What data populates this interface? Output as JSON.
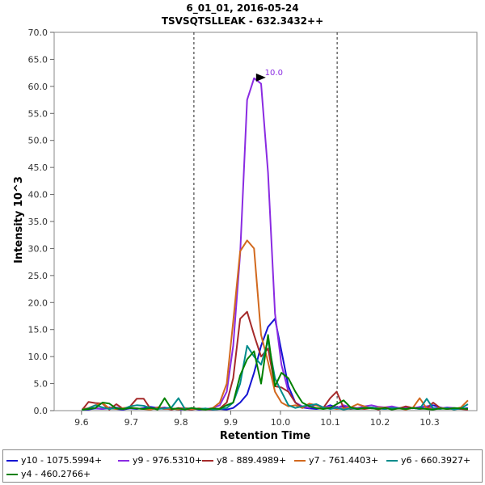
{
  "chart_data": {
    "type": "line",
    "title": "6_01_01, 2016-05-24",
    "subtitle": "TSVSQTSLLEAK - 632.3432++",
    "xlabel": "Retention Time",
    "ylabel": "Intensity 10^3",
    "xlim": [
      9.545,
      10.395
    ],
    "ylim": [
      0,
      70
    ],
    "x_ticks": [
      9.6,
      9.7,
      9.8,
      9.9,
      10.0,
      10.1,
      10.2,
      10.3
    ],
    "x_tick_labels": [
      "9.6",
      "9.7",
      "9.8",
      "9.9",
      "10.0",
      "10.1",
      "10.2",
      "10.3"
    ],
    "y_ticks": [
      0,
      5,
      10,
      15,
      20,
      25,
      30,
      35,
      40,
      45,
      50,
      55,
      60,
      65,
      70
    ],
    "y_tick_labels": [
      "0.0",
      "5.0",
      "10.0",
      "15.0",
      "20.0",
      "25.0",
      "30.0",
      "35.0",
      "40.0",
      "45.0",
      "50.0",
      "55.0",
      "60.0",
      "65.0",
      "70.0"
    ],
    "integration_bounds": [
      9.826,
      10.114
    ],
    "peak_annotation": {
      "label": "10.0",
      "x": 9.99,
      "y": 61.5
    },
    "x": [
      9.601,
      9.614,
      9.628,
      9.642,
      9.656,
      9.67,
      9.684,
      9.698,
      9.711,
      9.725,
      9.739,
      9.753,
      9.767,
      9.781,
      9.795,
      9.808,
      9.822,
      9.836,
      9.85,
      9.864,
      9.878,
      9.892,
      9.905,
      9.919,
      9.933,
      9.947,
      9.961,
      9.975,
      9.989,
      10.002,
      10.016,
      10.03,
      10.044,
      10.058,
      10.072,
      10.086,
      10.1,
      10.113,
      10.127,
      10.141,
      10.155,
      10.169,
      10.183,
      10.197,
      10.21,
      10.224,
      10.238,
      10.252,
      10.266,
      10.28,
      10.294,
      10.307,
      10.321,
      10.335,
      10.349,
      10.363,
      10.377
    ],
    "series": [
      {
        "name": "y10 - 1075.5994+",
        "color": "#1414d2",
        "values": [
          0.2,
          0.2,
          0.4,
          0.3,
          0.6,
          0.3,
          0.2,
          0.4,
          0.3,
          0.5,
          0.7,
          0.5,
          0.3,
          0.4,
          0.2,
          0.3,
          0.4,
          0.2,
          0.3,
          0.2,
          0.3,
          0.2,
          0.5,
          1.5,
          3.0,
          7.0,
          12.0,
          15.5,
          17.0,
          11.0,
          4.5,
          1.5,
          0.6,
          0.4,
          0.3,
          0.5,
          1.0,
          0.6,
          0.8,
          0.5,
          0.3,
          0.4,
          0.6,
          0.4,
          0.3,
          0.5,
          0.4,
          0.3,
          0.5,
          0.6,
          0.8,
          1.0,
          0.6,
          0.3,
          0.4,
          0.3,
          0.5
        ]
      },
      {
        "name": "y9 - 976.5310+",
        "color": "#8a2be2",
        "values": [
          0.3,
          0.4,
          0.5,
          0.3,
          0.4,
          0.6,
          0.3,
          0.5,
          0.4,
          0.3,
          0.5,
          0.4,
          0.6,
          0.3,
          0.4,
          0.5,
          0.3,
          0.4,
          0.3,
          0.5,
          1.0,
          3.5,
          12.0,
          29.0,
          57.5,
          61.5,
          60.5,
          44.0,
          18.0,
          8.5,
          3.5,
          1.5,
          0.8,
          0.5,
          1.2,
          0.6,
          0.8,
          0.5,
          1.0,
          0.6,
          0.5,
          0.8,
          1.0,
          0.7,
          0.6,
          0.8,
          0.5,
          0.6,
          0.4,
          0.7,
          0.8,
          0.5,
          0.4,
          0.6,
          0.5,
          0.4,
          0.3
        ]
      },
      {
        "name": "y8 - 889.4989+",
        "color": "#a52a2a",
        "values": [
          0.1,
          1.6,
          1.4,
          1.3,
          0.2,
          1.2,
          0.3,
          0.8,
          2.2,
          2.2,
          0.3,
          0.6,
          0.4,
          0.2,
          0.5,
          0.3,
          0.2,
          0.4,
          0.3,
          0.2,
          0.4,
          1.5,
          6.0,
          17.0,
          18.3,
          14.0,
          10.0,
          11.5,
          4.5,
          4.3,
          3.5,
          1.5,
          0.5,
          1.2,
          1.0,
          0.5,
          2.3,
          3.5,
          0.5,
          0.3,
          0.4,
          0.3,
          0.5,
          0.2,
          0.6,
          0.3,
          0.4,
          0.8,
          0.5,
          0.3,
          0.4,
          1.5,
          0.5,
          0.3,
          0.4,
          0.3,
          0.2
        ]
      },
      {
        "name": "y7 - 761.4403+",
        "color": "#d2691e",
        "values": [
          0.2,
          0.5,
          1.0,
          1.4,
          0.4,
          0.3,
          0.5,
          0.6,
          0.4,
          0.3,
          0.2,
          0.5,
          0.3,
          0.4,
          0.2,
          0.5,
          0.3,
          0.4,
          0.2,
          0.5,
          1.5,
          5.0,
          16.5,
          29.5,
          31.5,
          30.0,
          14.0,
          9.0,
          3.5,
          1.5,
          0.8,
          1.0,
          0.5,
          1.3,
          1.0,
          0.6,
          0.5,
          0.3,
          0.4,
          0.6,
          1.2,
          0.8,
          0.4,
          0.6,
          0.5,
          0.3,
          0.4,
          0.2,
          0.5,
          2.3,
          0.4,
          0.3,
          0.5,
          0.4,
          0.3,
          0.6,
          1.9
        ]
      },
      {
        "name": "y6 - 660.3927+",
        "color": "#008b8b",
        "values": [
          0.1,
          0.4,
          1.0,
          0.6,
          0.3,
          0.5,
          0.3,
          0.8,
          1.0,
          0.9,
          0.5,
          0.3,
          0.4,
          0.6,
          2.3,
          0.3,
          0.5,
          0.3,
          0.4,
          0.2,
          0.3,
          0.5,
          1.5,
          5.0,
          12.0,
          10.0,
          8.5,
          13.0,
          6.0,
          3.5,
          1.0,
          0.5,
          0.8,
          1.0,
          1.2,
          0.6,
          0.3,
          0.5,
          0.2,
          0.4,
          0.3,
          0.5,
          0.6,
          0.4,
          0.3,
          0.5,
          0.4,
          0.3,
          0.5,
          0.3,
          2.2,
          0.4,
          0.3,
          0.5,
          0.2,
          0.4,
          1.2
        ]
      },
      {
        "name": "y4 - 460.2766+",
        "color": "#008000",
        "values": [
          0.2,
          0.3,
          0.5,
          1.5,
          1.3,
          0.4,
          0.3,
          0.5,
          0.4,
          0.3,
          0.5,
          0.2,
          2.3,
          0.3,
          0.4,
          0.2,
          0.5,
          0.3,
          0.2,
          0.4,
          0.3,
          1.0,
          1.5,
          6.5,
          9.5,
          11.0,
          5.0,
          14.0,
          4.5,
          7.0,
          6.0,
          3.5,
          1.5,
          0.8,
          0.5,
          0.3,
          0.5,
          1.2,
          1.9,
          0.6,
          0.3,
          0.5,
          0.4,
          0.3,
          0.5,
          0.2,
          0.4,
          0.3,
          0.5,
          0.4,
          0.3,
          0.2,
          0.4,
          0.3,
          0.5,
          0.4,
          0.3
        ]
      }
    ]
  }
}
